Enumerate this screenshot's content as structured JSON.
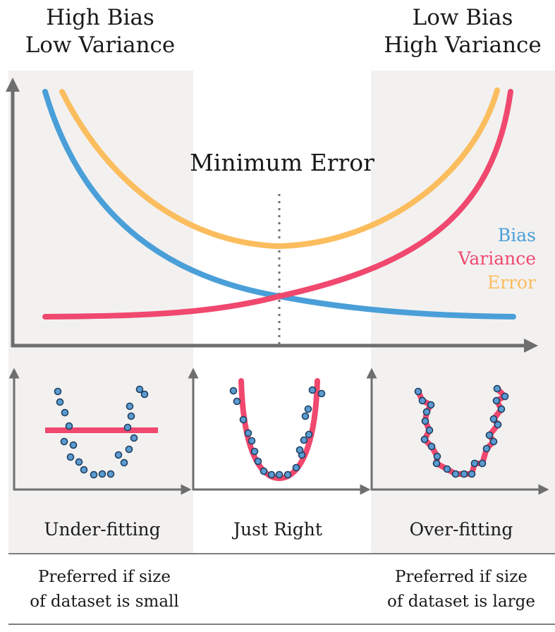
{
  "header": {
    "left_line1": "High Bias",
    "left_line2": "Low Variance",
    "right_line1": "Low Bias",
    "right_line2": "High Variance"
  },
  "main_chart": {
    "annotation": "Minimum Error",
    "legend": [
      {
        "label": "Bias",
        "color": "#4a9fd8"
      },
      {
        "label": "Variance",
        "color": "#f0486e"
      },
      {
        "label": "Error",
        "color": "#fbbd5e"
      }
    ]
  },
  "panels": [
    {
      "label": "Under-fitting",
      "note_line1": "Preferred if size",
      "note_line2": "of dataset is small"
    },
    {
      "label": "Just Right",
      "note_line1": "",
      "note_line2": ""
    },
    {
      "label": "Over-fitting",
      "note_line1": "Preferred if size",
      "note_line2": "of dataset is large"
    }
  ],
  "colors": {
    "bias": "#4a9fd8",
    "variance": "#f0486e",
    "error": "#fbbd5e",
    "shade": "#f2f1f0",
    "axis": "#6e6e6e",
    "points": "#5b9bd1"
  }
}
